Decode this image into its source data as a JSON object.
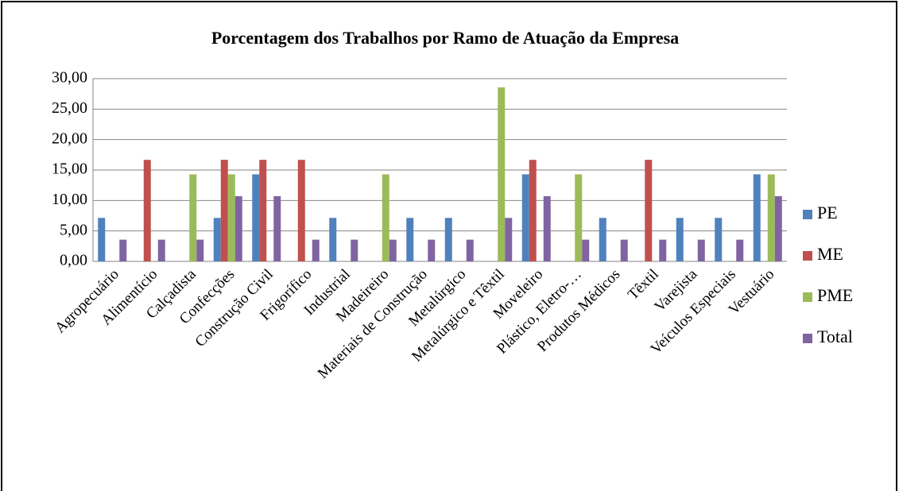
{
  "chart_data": {
    "type": "bar",
    "title": "Porcentagem dos Trabalhos por Ramo de Atuação da Empresa",
    "categories": [
      "Agropecuário",
      "Alimentício",
      "Calçadista",
      "Confecções",
      "Construção Civil",
      "Frigorífico",
      "Industrial",
      "Madeireiro",
      "Materiais de Construção",
      "Metalúrgico",
      "Metalúrgico e Têxtil",
      "Moveleiro",
      "Plástico, Eletro-…",
      "Produtos Médicos",
      "Têxtil",
      "Varejista",
      "Veículos Especiais",
      "Vestuário"
    ],
    "series": [
      {
        "name": "PE",
        "color": "#4f81bd",
        "values": [
          7.14,
          0,
          0,
          7.14,
          14.29,
          0,
          7.14,
          0,
          7.14,
          7.14,
          0,
          14.29,
          0,
          7.14,
          0,
          7.14,
          7.14,
          14.29
        ]
      },
      {
        "name": "ME",
        "color": "#c0504d",
        "values": [
          0,
          16.67,
          0,
          16.67,
          16.67,
          16.67,
          0,
          0,
          0,
          0,
          0,
          16.67,
          0,
          0,
          16.67,
          0,
          0,
          0
        ]
      },
      {
        "name": "PME",
        "color": "#9bbb59",
        "values": [
          0,
          0,
          14.29,
          14.29,
          0,
          0,
          0,
          14.29,
          0,
          0,
          28.57,
          0,
          14.29,
          0,
          0,
          0,
          0,
          14.29
        ]
      },
      {
        "name": "Total",
        "color": "#8064a2",
        "values": [
          3.57,
          3.57,
          3.57,
          10.71,
          10.71,
          3.57,
          3.57,
          3.57,
          3.57,
          3.57,
          7.14,
          10.71,
          3.57,
          3.57,
          3.57,
          3.57,
          3.57,
          10.71
        ]
      }
    ],
    "ylim": [
      0,
      30
    ],
    "yticks": [
      {
        "value": 0,
        "label": "0,00"
      },
      {
        "value": 5,
        "label": "5,00"
      },
      {
        "value": 10,
        "label": "10,00"
      },
      {
        "value": 15,
        "label": "15,00"
      },
      {
        "value": 20,
        "label": "20,00"
      },
      {
        "value": 25,
        "label": "25,00"
      },
      {
        "value": 30,
        "label": "30,00"
      }
    ],
    "grid": true,
    "legend": "right"
  }
}
